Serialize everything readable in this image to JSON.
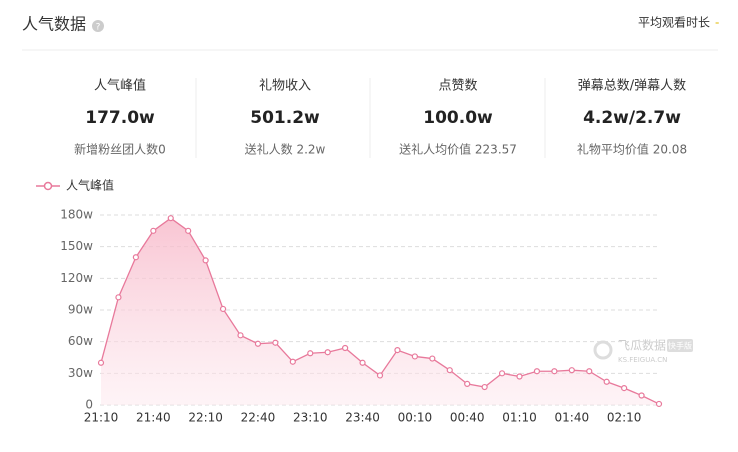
{
  "header": {
    "title": "人气数据",
    "right_label": "平均观看时长",
    "right_value": "-"
  },
  "stats": [
    {
      "label": "人气峰值",
      "value": "177.0w",
      "sub": "新增粉丝团人数0"
    },
    {
      "label": "礼物收入",
      "value": "501.2w",
      "sub": "送礼人数 2.2w"
    },
    {
      "label": "点赞数",
      "value": "100.0w",
      "sub": "送礼人均价值 223.57"
    },
    {
      "label": "弹幕总数/弹幕人数",
      "value": "4.2w/2.7w",
      "sub": "礼物平均价值 20.08"
    }
  ],
  "watermark": {
    "name": "飞瓜数据",
    "badge": "快手版",
    "site": "KS.FEIGUA.CN"
  },
  "chart_data": {
    "type": "line",
    "categories": [
      "21:10",
      null,
      null,
      "21:40",
      null,
      null,
      "22:10",
      null,
      null,
      "22:40",
      null,
      null,
      "23:10",
      null,
      null,
      "23:40",
      null,
      null,
      "00:10",
      null,
      null,
      "00:40",
      null,
      null,
      "01:10",
      null,
      null,
      "01:40",
      null,
      null,
      "02:10",
      null,
      null
    ],
    "series": [
      {
        "name": "人气峰值",
        "color": "#e8799b",
        "values": [
          40,
          102,
          140,
          165,
          177,
          165,
          137,
          91,
          66,
          58,
          59,
          41,
          49,
          50,
          54,
          40,
          28,
          52,
          46,
          44,
          33,
          20,
          17,
          30,
          27,
          32,
          32,
          33,
          32,
          22,
          16,
          9,
          1
        ]
      }
    ],
    "ylim": [
      0,
      180
    ],
    "yticks": [
      0,
      {
        "value": 30,
        "label": "30w"
      },
      {
        "value": 60,
        "label": "60w"
      },
      {
        "value": 90,
        "label": "90w"
      },
      {
        "value": 120,
        "label": "120w"
      },
      {
        "value": 150,
        "label": "150w"
      },
      {
        "value": 180,
        "label": "180w"
      }
    ],
    "grid": true,
    "legend": "top-left"
  }
}
